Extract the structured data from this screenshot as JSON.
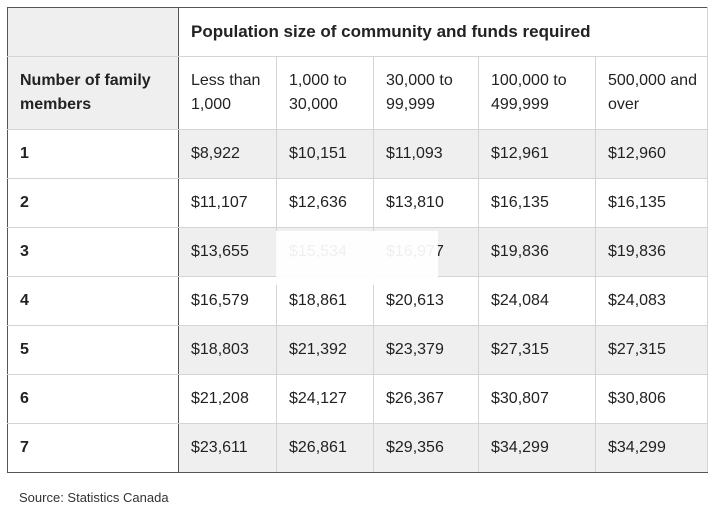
{
  "table": {
    "title": "Population size of community and funds required",
    "row_header_label": "Number of family members",
    "columns": [
      "Less than 1,000",
      "1,000 to 30,000",
      "30,000 to 99,999",
      "100,000 to 499,999",
      "500,000 and over"
    ],
    "rows": [
      {
        "label": "1",
        "values": [
          "$8,922",
          "$10,151",
          "$11,093",
          "$12,961",
          "$12,960"
        ]
      },
      {
        "label": "2",
        "values": [
          "$11,107",
          "$12,636",
          "$13,810",
          "$16,135",
          "$16,135"
        ]
      },
      {
        "label": "3",
        "values": [
          "$13,655",
          "$15,534",
          "$16,977",
          "$19,836",
          "$19,836"
        ]
      },
      {
        "label": "4",
        "values": [
          "$16,579",
          "$18,861",
          "$20,613",
          "$24,084",
          "$24,083"
        ]
      },
      {
        "label": "5",
        "values": [
          "$18,803",
          "$21,392",
          "$23,379",
          "$27,315",
          "$27,315"
        ]
      },
      {
        "label": "6",
        "values": [
          "$21,208",
          "$24,127",
          "$26,367",
          "$30,807",
          "$30,806"
        ]
      },
      {
        "label": "7",
        "values": [
          "$23,611",
          "$26,861",
          "$29,356",
          "$34,299",
          "$34,299"
        ]
      }
    ]
  },
  "source": "Source: Statistics Canada"
}
